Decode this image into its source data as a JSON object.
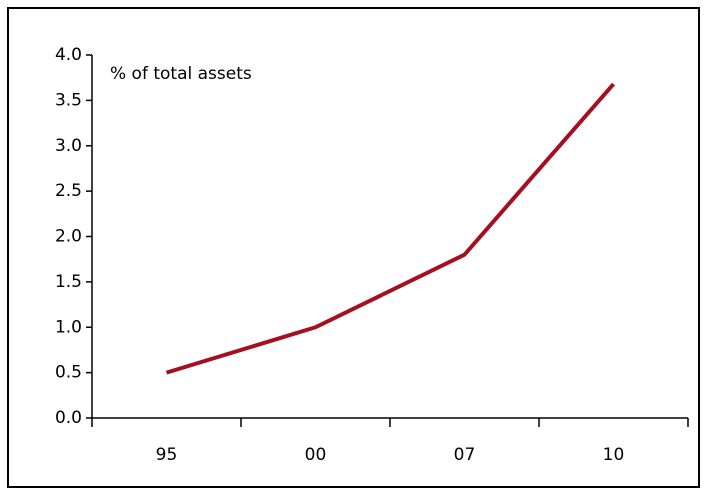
{
  "chart_data": {
    "type": "line",
    "ylabel": "% of total assets",
    "categories": [
      "95",
      "00",
      "07",
      "10"
    ],
    "series": [
      {
        "name": null,
        "color": "#a50f21",
        "values": [
          0.5,
          1.0,
          1.8,
          3.68
        ]
      }
    ],
    "ylim": [
      0,
      4
    ],
    "yticks": [
      {
        "value": 0,
        "label": "0.0"
      },
      0.5,
      {
        "value": 1,
        "label": "1.0"
      },
      1.5,
      {
        "value": 2,
        "label": "2.0"
      },
      2.5,
      {
        "value": 3,
        "label": "3.0"
      },
      3.5,
      {
        "value": 4,
        "label": "4.0"
      }
    ],
    "grid": false
  }
}
